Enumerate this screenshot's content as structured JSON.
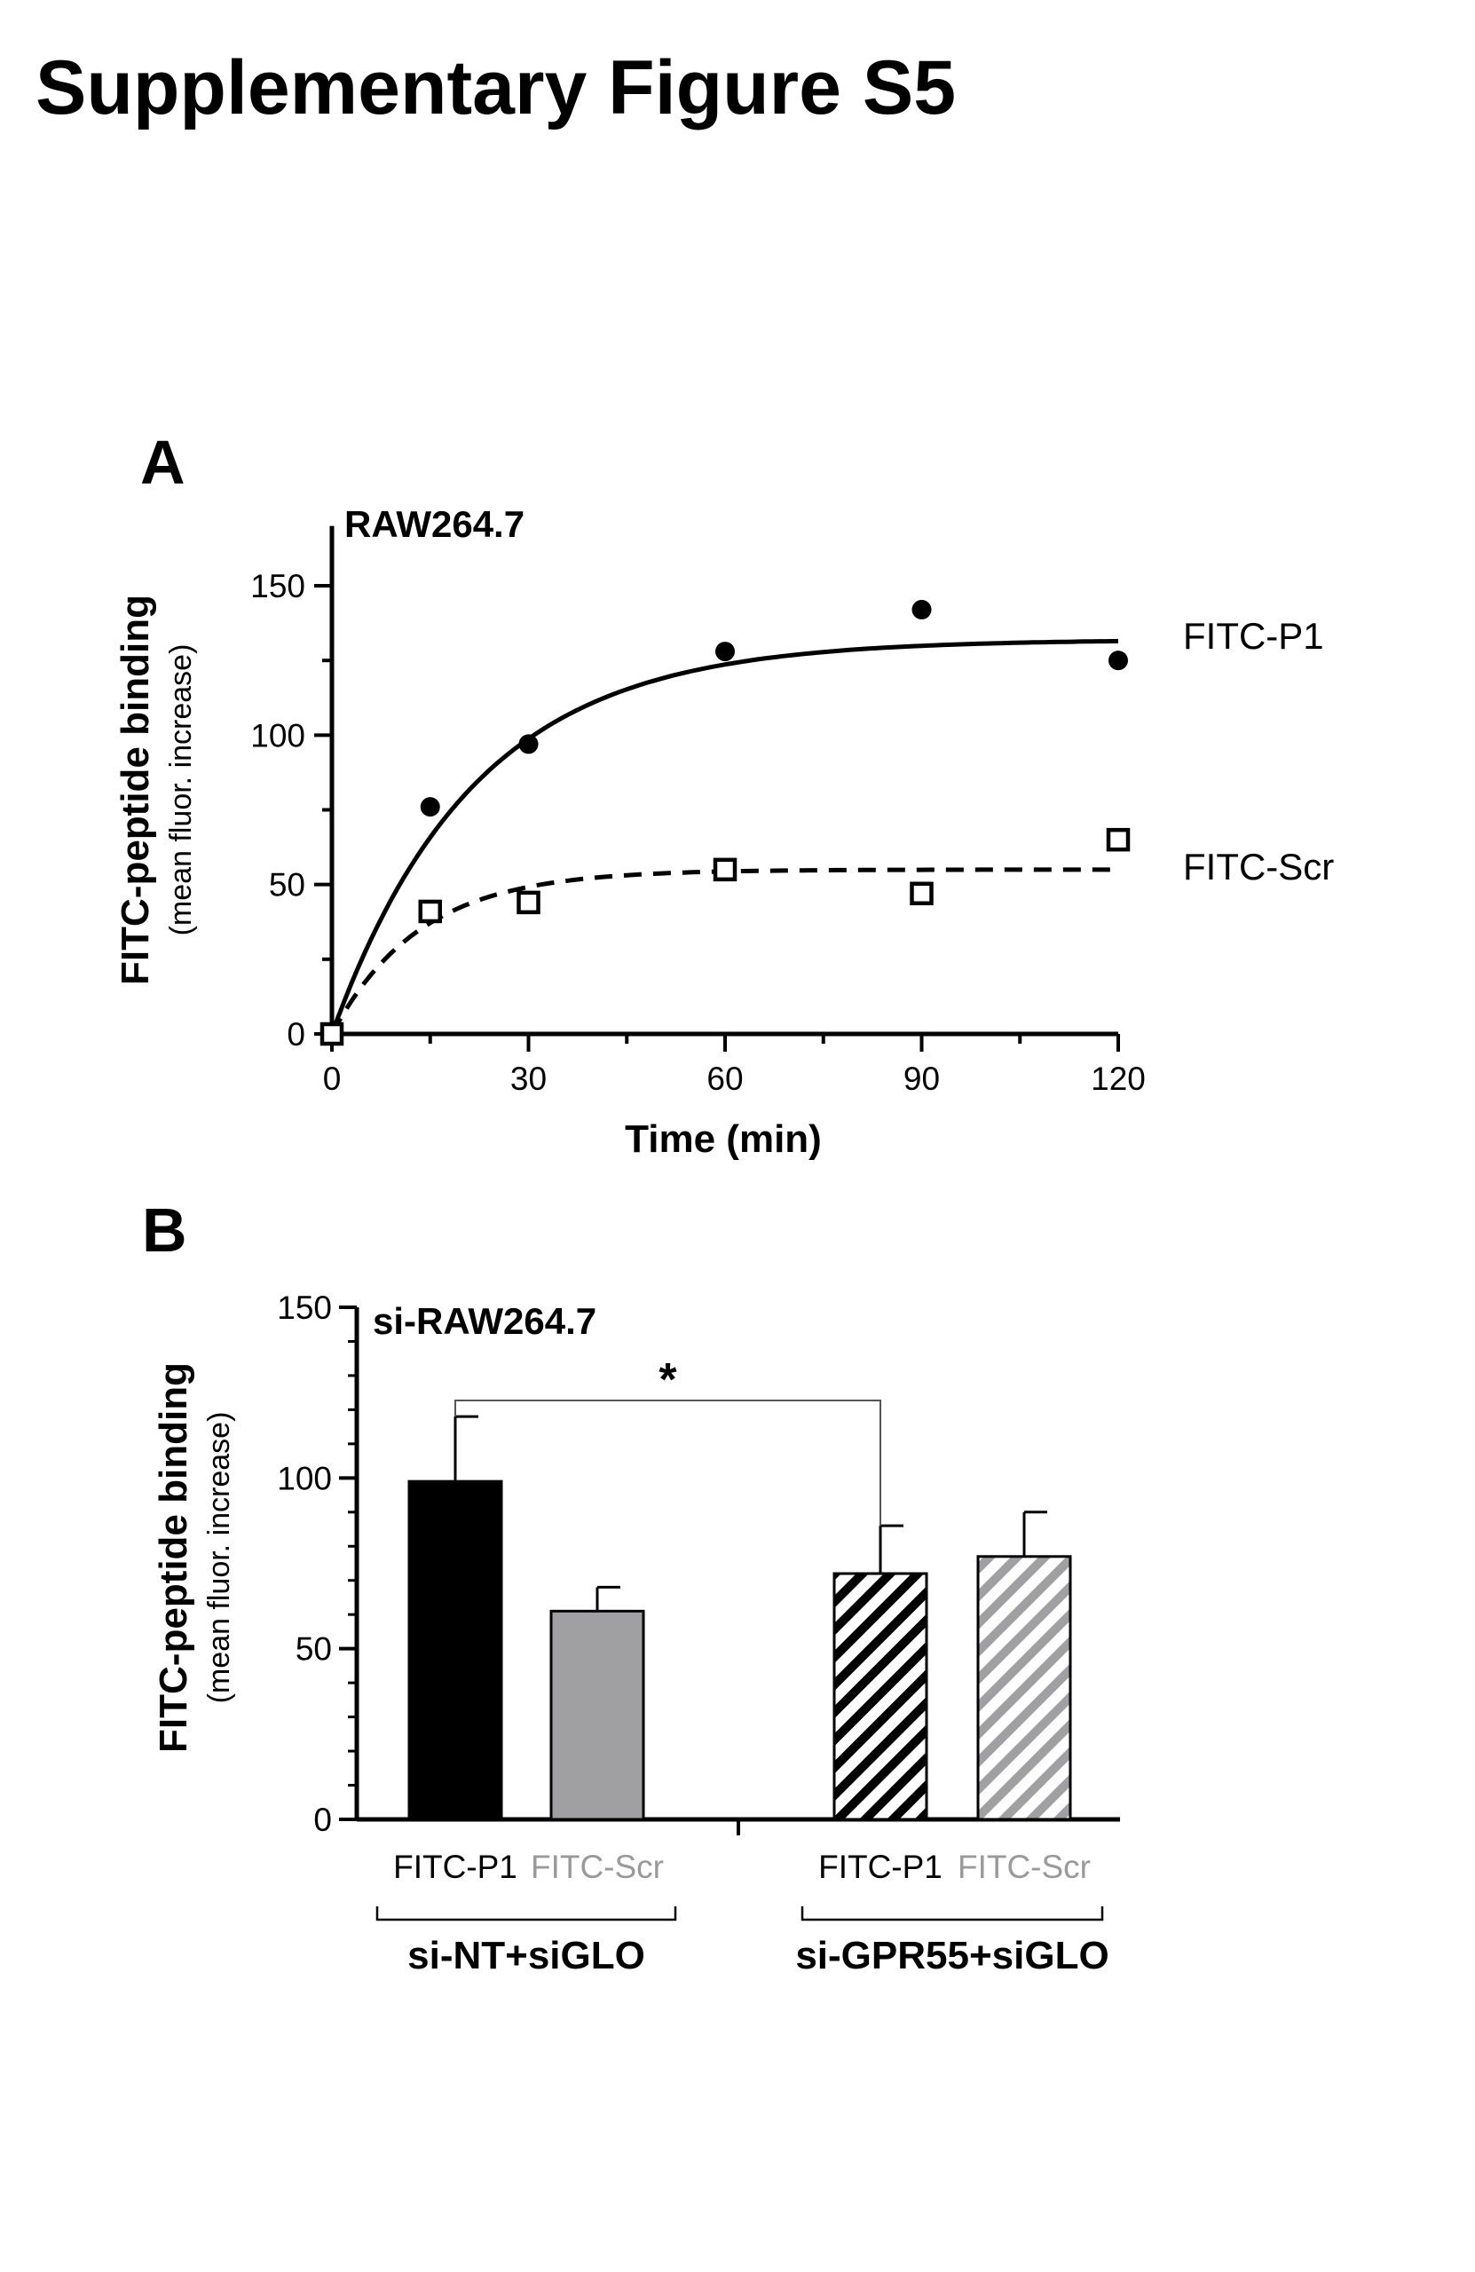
{
  "figure_title": "Supplementary Figure S5",
  "chart_data": [
    {
      "type": "scatter",
      "panel_label": "A",
      "annotation": "RAW264.7",
      "xlabel": "Time (min)",
      "ylabel": "FITC-peptide binding",
      "ylabel_sub": "(mean fluor. increase)",
      "xlim": [
        0,
        120
      ],
      "ylim": [
        0,
        170
      ],
      "xticks": [
        0,
        30,
        60,
        90,
        120
      ],
      "yticks": [
        0,
        50,
        100,
        150
      ],
      "grid": false,
      "legend": "right, labels beside curve ends",
      "series": [
        {
          "name": "FITC-P1",
          "marker": "filled-circle",
          "fit": "solid",
          "fit_plateau": 132,
          "fit_rate": 0.046,
          "x": [
            0,
            15,
            30,
            60,
            90,
            120
          ],
          "y": [
            0,
            76,
            97,
            128,
            142,
            125
          ]
        },
        {
          "name": "FITC-Scr",
          "marker": "open-square",
          "fit": "dashed",
          "fit_plateau": 55,
          "fit_rate": 0.075,
          "x": [
            0,
            15,
            30,
            60,
            90,
            120
          ],
          "y": [
            0,
            41,
            44,
            55,
            47,
            65
          ]
        }
      ]
    },
    {
      "type": "bar",
      "panel_label": "B",
      "annotation": "si-RAW264.7",
      "ylabel": "FITC-peptide binding",
      "ylabel_sub": "(mean fluor. increase)",
      "ylim": [
        0,
        150
      ],
      "yticks": [
        0,
        50,
        100,
        150
      ],
      "grid": false,
      "significance": "*",
      "groups": [
        {
          "name": "si-NT+siGLO",
          "bars": [
            {
              "label": "FITC-P1",
              "value": 99,
              "error": 19,
              "fill": "#000000",
              "pattern": "solid"
            },
            {
              "label": "FITC-Scr",
              "value": 61,
              "error": 7,
              "fill": "#a0a0a3",
              "pattern": "solid"
            }
          ]
        },
        {
          "name": "si-GPR55+siGLO",
          "bars": [
            {
              "label": "FITC-P1",
              "value": 72,
              "error": 14,
              "fill": "#000000",
              "pattern": "hatched"
            },
            {
              "label": "FITC-Scr",
              "value": 77,
              "error": 13,
              "fill": "#a0a0a3",
              "pattern": "hatched"
            }
          ]
        }
      ],
      "colors": {
        "dark": "#000000",
        "grey": "#a0a0a3",
        "grey_label": "#9a9a9a"
      }
    }
  ]
}
